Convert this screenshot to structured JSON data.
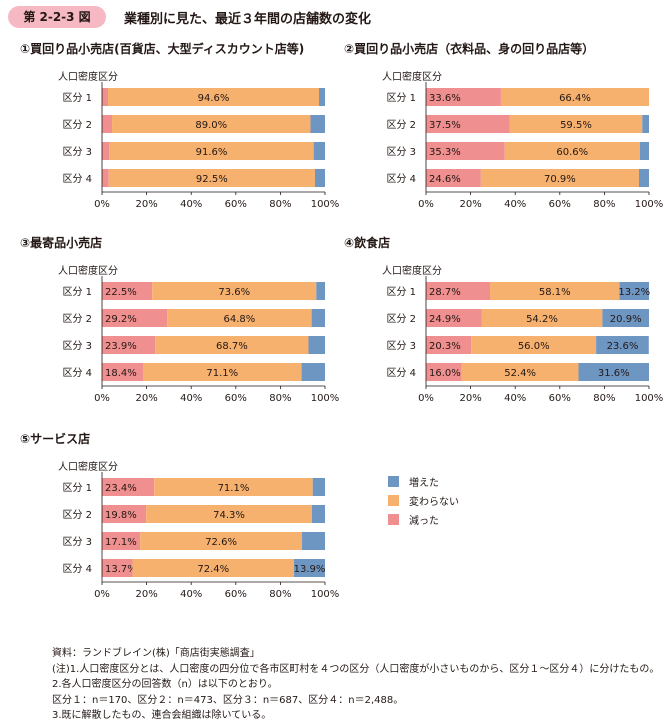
{
  "figure": {
    "number": "第 2-2-3 図",
    "title": "業種別に見た、最近３年間の店舗数の変化"
  },
  "colors": {
    "decreased": "#f08f8f",
    "unchanged": "#f6b16e",
    "increased": "#6e96c3"
  },
  "legend": {
    "items": [
      {
        "label": "増えた",
        "color": "#6e96c3"
      },
      {
        "label": "変わらない",
        "color": "#f6b16e"
      },
      {
        "label": "減った",
        "color": "#f08f8f"
      }
    ]
  },
  "chart_data": [
    {
      "type": "bar",
      "orientation": "horizontal",
      "stacked": true,
      "title": "①買回り品小売店(百貨店、大型ディスカウント店等)",
      "ylabel": "人口密度区分",
      "categories": [
        "区分 1",
        "区分 2",
        "区分 3",
        "区分 4"
      ],
      "xlim": [
        0,
        100
      ],
      "xticks": [
        "0%",
        "20%",
        "40%",
        "60%",
        "80%",
        "100%"
      ],
      "series": [
        {
          "name": "減った",
          "values": [
            2.7,
            4.5,
            3.3,
            3.0
          ],
          "labels": [
            "",
            "",
            "",
            ""
          ]
        },
        {
          "name": "変わらない",
          "values": [
            94.6,
            89.0,
            91.6,
            92.5
          ],
          "labels": [
            "94.6%",
            "89.0%",
            "91.6%",
            "92.5%"
          ]
        },
        {
          "name": "増えた",
          "values": [
            2.7,
            6.5,
            5.1,
            4.5
          ],
          "labels": [
            "",
            "",
            "",
            ""
          ]
        }
      ]
    },
    {
      "type": "bar",
      "orientation": "horizontal",
      "stacked": true,
      "title": "②買回り品小売店（衣料品、身の回り品店等）",
      "ylabel": "人口密度区分",
      "categories": [
        "区分 1",
        "区分 2",
        "区分 3",
        "区分 4"
      ],
      "xlim": [
        0,
        100
      ],
      "xticks": [
        "0%",
        "20%",
        "40%",
        "60%",
        "80%",
        "100%"
      ],
      "series": [
        {
          "name": "減った",
          "values": [
            33.6,
            37.5,
            35.3,
            24.6
          ],
          "labels": [
            "33.6%",
            "37.5%",
            "35.3%",
            "24.6%"
          ]
        },
        {
          "name": "変わらない",
          "values": [
            66.4,
            59.5,
            60.6,
            70.9
          ],
          "labels": [
            "66.4%",
            "59.5%",
            "60.6%",
            "70.9%"
          ]
        },
        {
          "name": "増えた",
          "values": [
            0.0,
            3.0,
            4.1,
            4.5
          ],
          "labels": [
            "",
            "",
            "",
            ""
          ]
        }
      ]
    },
    {
      "type": "bar",
      "orientation": "horizontal",
      "stacked": true,
      "title": "③最寄品小売店",
      "ylabel": "人口密度区分",
      "categories": [
        "区分 1",
        "区分 2",
        "区分 3",
        "区分 4"
      ],
      "xlim": [
        0,
        100
      ],
      "xticks": [
        "0%",
        "20%",
        "40%",
        "60%",
        "80%",
        "100%"
      ],
      "series": [
        {
          "name": "減った",
          "values": [
            22.5,
            29.2,
            23.9,
            18.4
          ],
          "labels": [
            "22.5%",
            "29.2%",
            "23.9%",
            "18.4%"
          ]
        },
        {
          "name": "変わらない",
          "values": [
            73.6,
            64.8,
            68.7,
            71.1
          ],
          "labels": [
            "73.6%",
            "64.8%",
            "68.7%",
            "71.1%"
          ]
        },
        {
          "name": "増えた",
          "values": [
            3.9,
            6.0,
            7.4,
            10.5
          ],
          "labels": [
            "",
            "",
            "",
            ""
          ]
        }
      ]
    },
    {
      "type": "bar",
      "orientation": "horizontal",
      "stacked": true,
      "title": "④飲食店",
      "ylabel": "人口密度区分",
      "categories": [
        "区分 1",
        "区分 2",
        "区分 3",
        "区分 4"
      ],
      "xlim": [
        0,
        100
      ],
      "xticks": [
        "0%",
        "20%",
        "40%",
        "60%",
        "80%",
        "100%"
      ],
      "series": [
        {
          "name": "減った",
          "values": [
            28.7,
            24.9,
            20.3,
            16.0
          ],
          "labels": [
            "28.7%",
            "24.9%",
            "20.3%",
            "16.0%"
          ]
        },
        {
          "name": "変わらない",
          "values": [
            58.1,
            54.2,
            56.0,
            52.4
          ],
          "labels": [
            "58.1%",
            "54.2%",
            "56.0%",
            "52.4%"
          ]
        },
        {
          "name": "増えた",
          "values": [
            13.2,
            20.9,
            23.6,
            31.6
          ],
          "labels": [
            "13.2%",
            "20.9%",
            "23.6%",
            "31.6%"
          ]
        }
      ]
    },
    {
      "type": "bar",
      "orientation": "horizontal",
      "stacked": true,
      "title": "⑤サービス店",
      "ylabel": "人口密度区分",
      "categories": [
        "区分 1",
        "区分 2",
        "区分 3",
        "区分 4"
      ],
      "xlim": [
        0,
        100
      ],
      "xticks": [
        "0%",
        "20%",
        "40%",
        "60%",
        "80%",
        "100%"
      ],
      "series": [
        {
          "name": "減った",
          "values": [
            23.4,
            19.8,
            17.1,
            13.7
          ],
          "labels": [
            "23.4%",
            "19.8%",
            "17.1%",
            "13.7%"
          ]
        },
        {
          "name": "変わらない",
          "values": [
            71.1,
            74.3,
            72.6,
            72.4
          ],
          "labels": [
            "71.1%",
            "74.3%",
            "72.6%",
            "72.4%"
          ]
        },
        {
          "name": "増えた",
          "values": [
            5.5,
            5.9,
            10.3,
            13.9
          ],
          "labels": [
            "",
            "",
            "",
            "13.9%"
          ]
        }
      ]
    }
  ],
  "notes": {
    "source": "資料：ランドブレイン(株)「商店街実態調査」",
    "note1": "(注)1.人口密度区分とは、人口密度の四分位で各市区町村を４つの区分（人口密度が小さいものから、区分１～区分４）に分けたもの。",
    "note2": "2.各人口密度区分の回答数（n）は以下のとおり。",
    "note3": "区分１：n＝170、区分２：n＝473、区分３：n＝687、区分４：n＝2,488。",
    "note4": "3.既に解散したもの、連合会組織は除いている。"
  }
}
